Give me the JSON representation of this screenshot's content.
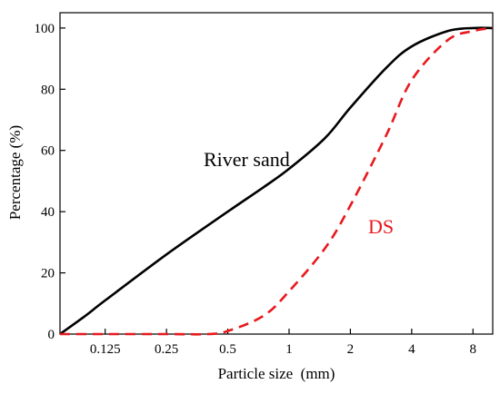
{
  "chart_data": {
    "type": "line",
    "title": "",
    "xlabel": "Particle size  (mm)",
    "ylabel": "Percentage (%)",
    "xscale": "log2",
    "xlim": [
      0.075,
      10
    ],
    "ylim": [
      0,
      105
    ],
    "xticks": [
      0.125,
      0.25,
      0.5,
      1,
      2,
      4,
      8
    ],
    "xtick_labels": [
      "0.125",
      "0.25",
      "0.5",
      "1",
      "2",
      "4",
      "8"
    ],
    "yticks": [
      0,
      20,
      40,
      60,
      80,
      100
    ],
    "ytick_labels": [
      "0",
      "20",
      "40",
      "60",
      "80",
      "100"
    ],
    "grid": false,
    "series": [
      {
        "name": "River sand",
        "color": "#000000",
        "style": "solid",
        "x": [
          0.075,
          0.1,
          0.125,
          0.25,
          0.5,
          0.75,
          1,
          1.5,
          2,
          3,
          4,
          6,
          8,
          10
        ],
        "y": [
          0,
          6,
          11,
          26,
          40,
          48,
          54,
          64,
          74,
          87,
          94,
          99,
          100,
          100
        ]
      },
      {
        "name": "DS",
        "color": "#e8191e",
        "style": "dashed",
        "x": [
          0.075,
          0.125,
          0.25,
          0.4,
          0.5,
          0.75,
          1,
          1.5,
          2,
          3,
          4,
          6,
          8,
          10
        ],
        "y": [
          0,
          0,
          0,
          0,
          1,
          6,
          14,
          28,
          42,
          65,
          83,
          96,
          99,
          100
        ]
      }
    ],
    "annotations": [
      {
        "text": "River sand",
        "color": "#000000"
      },
      {
        "text": "DS",
        "color": "#e8191e"
      }
    ]
  }
}
